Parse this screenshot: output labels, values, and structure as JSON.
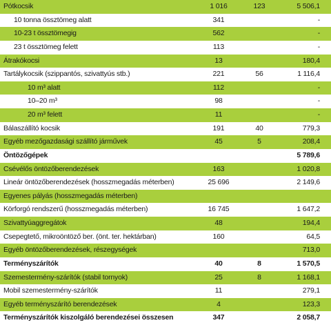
{
  "table": {
    "rows": [
      {
        "label": "Pótkocsik",
        "c1": "1 016",
        "c2": "123",
        "c3": "5 506,1"
      },
      {
        "label": "10 tonna össztömeg alatt",
        "c1": "341",
        "c3": "-"
      },
      {
        "label": "10-23 t össztömegig",
        "c1": "562",
        "c3": "-"
      },
      {
        "label": "23 t össztömeg felett",
        "c1": "113",
        "c3": "-"
      },
      {
        "label": "Átrakókocsi",
        "c1": "13",
        "c3": "180,4"
      },
      {
        "label": "Tartálykocsik (szippantós, szivattyús stb.)",
        "c1": "221",
        "c2": "56",
        "c3": "1 116,4"
      },
      {
        "label": "10 m³ alatt",
        "c1": "112",
        "c3": "-"
      },
      {
        "label": "10–20 m³",
        "c1": "98",
        "c3": "-"
      },
      {
        "label": "20 m³ felett",
        "c1": "11",
        "c3": "-"
      },
      {
        "label": "Bálaszállító kocsik",
        "c1": "191",
        "c2": "40",
        "c3": "779,3"
      },
      {
        "label": "Egyéb mezőgazdasági szállító járművek",
        "c1": "45",
        "c2": "5",
        "c3": "208,4"
      },
      {
        "label": "Öntözőgépek",
        "c3": "5 789,6"
      },
      {
        "label": "Csévélős öntözőberendezések",
        "c1": "163",
        "c3": "1 020,8"
      },
      {
        "label": "Lineár öntözőberendezések (hosszmegadás méterben)",
        "c1": "25 696",
        "c3": "2 149,6"
      },
      {
        "label": "Egyenes pályás (hosszmegadás méterben)"
      },
      {
        "label": "Körforgó rendszerű (hosszmegadás méterben)",
        "c1": "16 745",
        "c3": "1 647,2"
      },
      {
        "label": "Szivattyúaggregátok",
        "c1": "48",
        "c3": "194,4"
      },
      {
        "label": "Csepegtető, mikroöntöző ber. (önt. ter. hektárban)",
        "c1": "160",
        "c3": "64,5"
      },
      {
        "label": "Egyéb öntözőberendezések, részegységek",
        "c3": "713,0"
      },
      {
        "label": "Terményszárítók",
        "c1": "40",
        "c2": "8",
        "c3": "1 570,5"
      },
      {
        "label": "Szemestermény-szárítók (stabil tornyok)",
        "c1": "25",
        "c2": "8",
        "c3": "1 168,1"
      },
      {
        "label": "Mobil szemestermény-szárítók",
        "c1": "11",
        "c3": "279,1"
      },
      {
        "label": "Egyéb terményszárító berendezések",
        "c1": "4",
        "c3": "123,3"
      },
      {
        "label": "Terményszárítók kiszolgáló berendezései összesen",
        "c1": "347",
        "c3": "2 058,7"
      }
    ]
  }
}
